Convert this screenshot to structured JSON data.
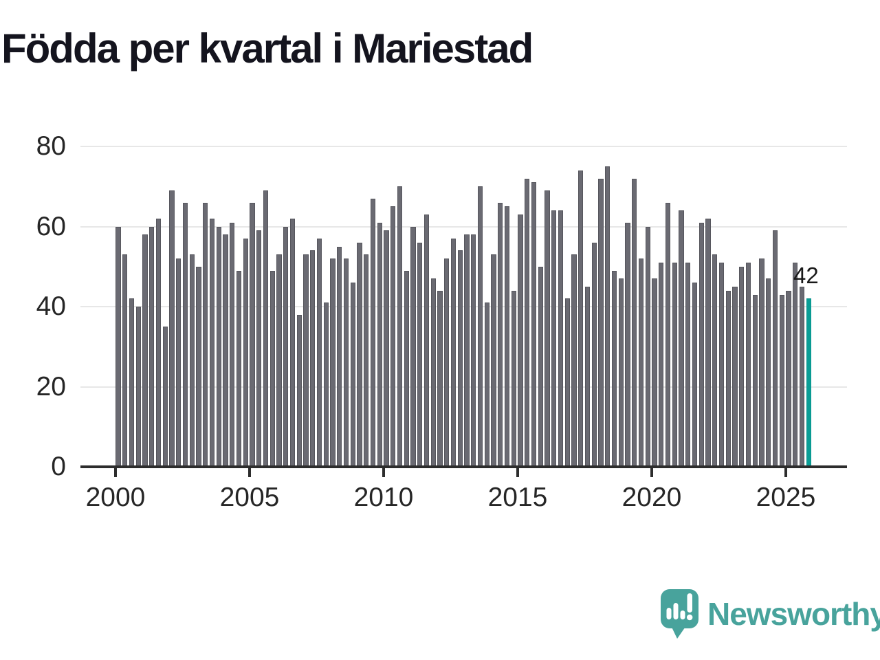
{
  "title": "Födda per kvartal i Mariestad",
  "branding": {
    "name": "Newsworthy"
  },
  "colors": {
    "bar": "#6a6a72",
    "bar_stroke": "#56565d",
    "highlight": "#0a9e96",
    "highlight_stroke": "#08938c",
    "grid": "#e7e7e7",
    "axis": "#2d2d2d",
    "tick_text": "#262626",
    "title_text": "#14141e",
    "annotation_text": "#191919",
    "logo": "#48a39c"
  },
  "chart_data": {
    "type": "bar",
    "title": "Födda per kvartal i Mariestad",
    "xlabel": "",
    "ylabel": "",
    "x_unit": "quarter",
    "x_range": [
      "2000-Q1",
      "2025-Q4"
    ],
    "ylim": [
      0,
      80
    ],
    "y_ticks": [
      0,
      20,
      40,
      60,
      80
    ],
    "x_ticks": [
      2000,
      2005,
      2010,
      2015,
      2020,
      2025
    ],
    "grid": true,
    "legend": "none",
    "highlight_last_bar": true,
    "annotation": {
      "text": "42",
      "target": "2025-Q4"
    },
    "years": [
      {
        "year": 2000,
        "values": [
          60,
          53,
          42,
          40
        ]
      },
      {
        "year": 2001,
        "values": [
          58,
          60,
          62,
          35
        ]
      },
      {
        "year": 2002,
        "values": [
          69,
          52,
          66,
          53
        ]
      },
      {
        "year": 2003,
        "values": [
          50,
          66,
          62,
          60
        ]
      },
      {
        "year": 2004,
        "values": [
          58,
          61,
          49,
          57
        ]
      },
      {
        "year": 2005,
        "values": [
          66,
          59,
          69,
          49
        ]
      },
      {
        "year": 2006,
        "values": [
          53,
          60,
          62,
          38
        ]
      },
      {
        "year": 2007,
        "values": [
          53,
          54,
          57,
          41
        ]
      },
      {
        "year": 2008,
        "values": [
          52,
          55,
          52,
          46
        ]
      },
      {
        "year": 2009,
        "values": [
          56,
          53,
          67,
          61
        ]
      },
      {
        "year": 2010,
        "values": [
          59,
          65,
          70,
          49
        ]
      },
      {
        "year": 2011,
        "values": [
          60,
          56,
          63,
          47
        ]
      },
      {
        "year": 2012,
        "values": [
          44,
          52,
          57,
          54
        ]
      },
      {
        "year": 2013,
        "values": [
          58,
          58,
          70,
          41
        ]
      },
      {
        "year": 2014,
        "values": [
          53,
          66,
          65,
          44
        ]
      },
      {
        "year": 2015,
        "values": [
          63,
          72,
          71,
          50
        ]
      },
      {
        "year": 2016,
        "values": [
          69,
          64,
          64,
          42
        ]
      },
      {
        "year": 2017,
        "values": [
          53,
          74,
          45,
          56
        ]
      },
      {
        "year": 2018,
        "values": [
          72,
          75,
          49,
          47
        ]
      },
      {
        "year": 2019,
        "values": [
          61,
          72,
          52,
          60
        ]
      },
      {
        "year": 2020,
        "values": [
          47,
          51,
          66,
          51
        ]
      },
      {
        "year": 2021,
        "values": [
          64,
          51,
          46,
          61
        ]
      },
      {
        "year": 2022,
        "values": [
          62,
          53,
          51,
          44
        ]
      },
      {
        "year": 2023,
        "values": [
          45,
          50,
          51,
          43
        ]
      },
      {
        "year": 2024,
        "values": [
          52,
          47,
          59,
          43
        ]
      },
      {
        "year": 2025,
        "values": [
          44,
          51,
          45,
          42
        ]
      }
    ]
  }
}
